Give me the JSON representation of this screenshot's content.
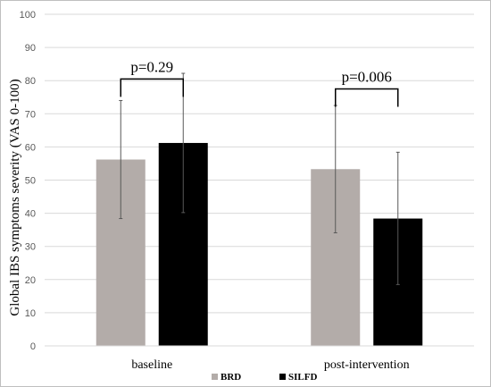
{
  "chart_data": {
    "type": "bar",
    "categories": [
      "baseline",
      "post-intervention"
    ],
    "series": [
      {
        "name": "BRD",
        "color": "#b3aca9",
        "values": [
          56.2,
          53.3
        ],
        "error_low": [
          38.4,
          34.1
        ],
        "error_high": [
          74.0,
          72.5
        ]
      },
      {
        "name": "SILFD",
        "color": "#000000",
        "values": [
          61.2,
          38.4
        ],
        "error_low": [
          40.2,
          18.5
        ],
        "error_high": [
          82.2,
          58.4
        ]
      }
    ],
    "ylabel": "Global IBS symptoms severity (VAS 0-100)",
    "xlabel": "",
    "ylim": [
      0,
      100
    ],
    "yticks": [
      0,
      10,
      20,
      30,
      40,
      50,
      60,
      70,
      80,
      90,
      100
    ],
    "ytick_labels": [
      "0",
      "10",
      "20",
      "30",
      "40",
      "50",
      "60",
      "70",
      "80",
      "90",
      "100"
    ],
    "grid": true,
    "legend_position": "bottom",
    "annotations": [
      {
        "category": "baseline",
        "text": "p=0.29",
        "bracket_y": 80.5
      },
      {
        "category": "post-intervention",
        "text": "p=0.006",
        "bracket_y": 77.5
      }
    ]
  }
}
